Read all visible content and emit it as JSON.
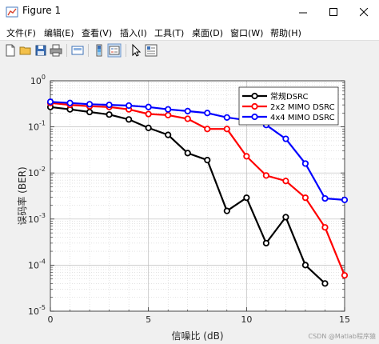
{
  "window": {
    "title": "Figure 1"
  },
  "menu": [
    "文件(F)",
    "编辑(E)",
    "查看(V)",
    "插入(I)",
    "工具(T)",
    "桌面(D)",
    "窗口(W)",
    "帮助(H)"
  ],
  "toolbar_icons": [
    "new-file-icon",
    "open-folder-icon",
    "save-icon",
    "print-icon",
    "link-plot-icon",
    "toggle-colorbar-icon",
    "insert-legend-icon",
    "pointer-icon",
    "property-inspector-icon"
  ],
  "watermark": "CSDN @Matlab程序猿",
  "chart_data": {
    "type": "line",
    "xlabel": "信噪比 (dB)",
    "ylabel": "误码率 (BER)",
    "xlim": [
      0,
      15
    ],
    "ylim": [
      1e-05,
      1
    ],
    "yscale": "log",
    "grid": true,
    "legend_position": "top-right",
    "x_ticks": [
      "0",
      "5",
      "10",
      "15"
    ],
    "y_ticks": [
      {
        "base": "10",
        "exp": "0"
      },
      {
        "base": "10",
        "exp": "-1"
      },
      {
        "base": "10",
        "exp": "-2"
      },
      {
        "base": "10",
        "exp": "-3"
      },
      {
        "base": "10",
        "exp": "-4"
      },
      {
        "base": "10",
        "exp": "-5"
      }
    ],
    "series": [
      {
        "name": "常规DSRC",
        "color": "#000000",
        "x": [
          0,
          1,
          2,
          3,
          4,
          5,
          6,
          7,
          8,
          9,
          10,
          11,
          12,
          13,
          14
        ],
        "y": [
          0.27,
          0.24,
          0.21,
          0.185,
          0.145,
          0.095,
          0.067,
          0.027,
          0.019,
          0.0015,
          0.0029,
          0.0003,
          0.0011,
          0.0001,
          4e-05
        ]
      },
      {
        "name": "2x2 MIMO DSRC",
        "color": "#ff0000",
        "x": [
          0,
          1,
          2,
          3,
          4,
          5,
          6,
          7,
          8,
          9,
          10,
          11,
          12,
          13,
          14,
          15
        ],
        "y": [
          0.33,
          0.3,
          0.28,
          0.27,
          0.24,
          0.19,
          0.18,
          0.15,
          0.09,
          0.09,
          0.023,
          0.0088,
          0.0067,
          0.0029,
          0.00066,
          6e-05
        ]
      },
      {
        "name": "4x4 MIMO DSRC",
        "color": "#0000ff",
        "x": [
          0,
          1,
          2,
          3,
          4,
          5,
          6,
          7,
          8,
          9,
          10,
          11,
          12,
          13,
          14,
          15
        ],
        "y": [
          0.35,
          0.33,
          0.31,
          0.3,
          0.29,
          0.27,
          0.24,
          0.22,
          0.2,
          0.16,
          0.14,
          0.11,
          0.055,
          0.016,
          0.0028,
          0.0026
        ]
      }
    ]
  }
}
